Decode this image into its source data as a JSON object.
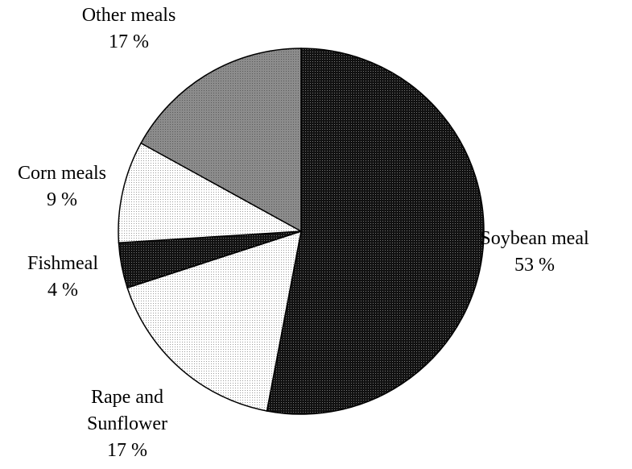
{
  "chart_data": {
    "type": "pie",
    "title": "",
    "start_angle_deg": 0,
    "direction": "clockwise",
    "slices": [
      {
        "label": "Soybean meal",
        "value": 53,
        "value_label": "53 %",
        "pattern": "pat-dark",
        "label_lines": [
          "Soybean meal"
        ]
      },
      {
        "label": "Rape and Sunflower",
        "value": 17,
        "value_label": "17 %",
        "pattern": "pat-light",
        "label_lines": [
          "Rape and",
          "Sunflower"
        ]
      },
      {
        "label": "Fishmeal",
        "value": 4,
        "value_label": "4 %",
        "pattern": "pat-dark",
        "label_lines": [
          "Fishmeal"
        ]
      },
      {
        "label": "Corn meals",
        "value": 9,
        "value_label": "9 %",
        "pattern": "pat-light",
        "label_lines": [
          "Corn meals"
        ]
      },
      {
        "label": "Other meals",
        "value": 17,
        "value_label": "17 %",
        "pattern": "pat-grey",
        "label_lines": [
          "Other meals"
        ]
      }
    ],
    "legend": "none"
  }
}
